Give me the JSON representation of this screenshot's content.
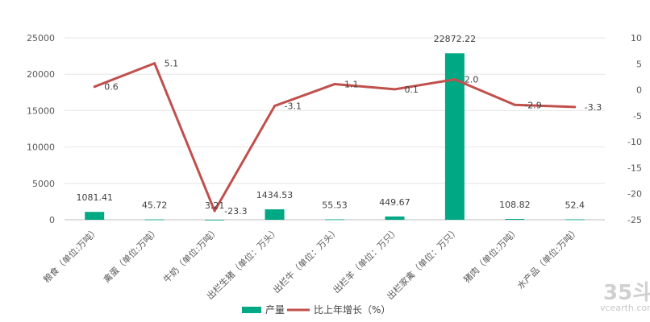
{
  "chart_data": {
    "type": "bar",
    "categories": [
      "粮食（单位:万吨）",
      "禽蛋（单位:万吨）",
      "牛奶（单位:万吨）",
      "出栏生猪（单位：万头）",
      "出栏牛（单位：万头）",
      "出栏羊（单位：万只）",
      "出栏家禽（单位：万只）",
      "猪肉（单位:万吨）",
      "水产品（单位:万吨）"
    ],
    "series": [
      {
        "name": "产量",
        "type": "bar",
        "axis": "left",
        "color": "#00a884",
        "values": [
          1081.41,
          45.72,
          3.21,
          1434.53,
          55.53,
          449.67,
          22872.22,
          108.82,
          52.4
        ],
        "labels": [
          "1081.41",
          "45.72",
          "3.21",
          "1434.53",
          "55.53",
          "449.67",
          "22872.22",
          "108.82",
          "52.4"
        ]
      },
      {
        "name": "比上年增长（%）",
        "type": "line",
        "axis": "right",
        "color": "#c0504d",
        "values": [
          0.6,
          5.1,
          -23.3,
          -3.1,
          1.1,
          0.1,
          2.0,
          -2.9,
          -3.3
        ],
        "labels": [
          "0.6",
          "5.1",
          "-23.3",
          "-3.1",
          "1.1",
          "0.1",
          "2.0",
          "-2.9",
          "-3.3"
        ]
      }
    ],
    "y_left": {
      "ylim": [
        0,
        25000
      ],
      "ticks": [
        "0",
        "5000",
        "10000",
        "15000",
        "20000",
        "25000"
      ]
    },
    "y_right": {
      "ylim": [
        -25,
        10
      ],
      "ticks": [
        "-25",
        "-20",
        "-15",
        "-10",
        "-5",
        "0",
        "5",
        "10"
      ]
    },
    "grid": true,
    "legend": "bottom"
  },
  "watermark": {
    "logo": "35斗",
    "url": "vcearth.com"
  }
}
